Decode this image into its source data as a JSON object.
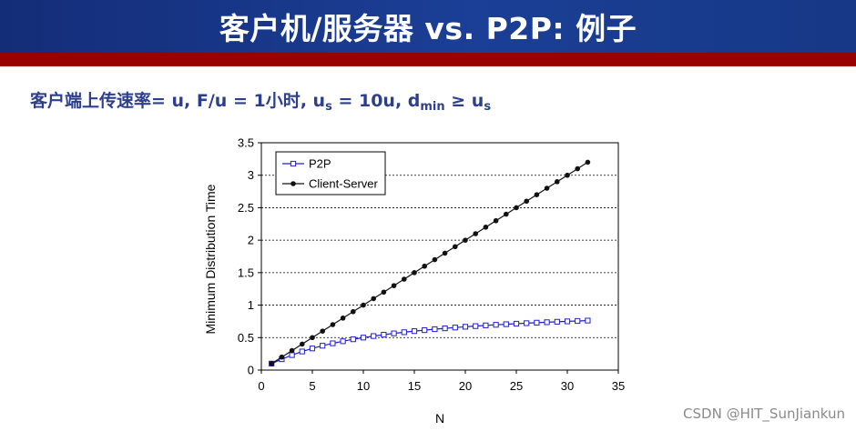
{
  "slide": {
    "title": "客户机/服务器 vs. P2P: 例子",
    "params": {
      "prefix": "客户端上传速率= u,  F/u = 1小时,  u",
      "us_sub": "s",
      "mid": " = 10u,  d",
      "dmin_sub": "min",
      "ge": " ≥ u",
      "us2_sub": "s"
    },
    "header_color": "#142d78",
    "accent_bar_color": "#9b0000",
    "text_color": "#2d3f8c"
  },
  "watermark": "CSDN @HIT_SunJiankun",
  "chart_data": {
    "type": "line",
    "xlabel": "N",
    "ylabel": "Minimum Distribution Time",
    "xlim": [
      0,
      35
    ],
    "ylim": [
      0,
      3.5
    ],
    "xticks": [
      0,
      5,
      10,
      15,
      20,
      25,
      30,
      35
    ],
    "yticks": [
      0,
      0.5,
      1,
      1.5,
      2,
      2.5,
      3,
      3.5
    ],
    "ytick_labels": [
      "0",
      "0.5",
      "1",
      "1.5",
      "2",
      "2.5",
      "3",
      "3.5"
    ],
    "grid": "horizontal-dashed",
    "legend_position": "top-left",
    "x": [
      1,
      2,
      3,
      4,
      5,
      6,
      7,
      8,
      9,
      10,
      11,
      12,
      13,
      14,
      15,
      16,
      17,
      18,
      19,
      20,
      21,
      22,
      23,
      24,
      25,
      26,
      27,
      28,
      29,
      30,
      31,
      32
    ],
    "series": [
      {
        "name": "P2P",
        "color": "#1f1fd1",
        "marker": "open-square",
        "values": [
          0.1,
          0.167,
          0.231,
          0.286,
          0.333,
          0.375,
          0.412,
          0.444,
          0.474,
          0.5,
          0.524,
          0.545,
          0.565,
          0.583,
          0.6,
          0.615,
          0.63,
          0.643,
          0.655,
          0.667,
          0.677,
          0.688,
          0.697,
          0.706,
          0.714,
          0.722,
          0.73,
          0.737,
          0.744,
          0.75,
          0.756,
          0.762
        ]
      },
      {
        "name": "Client-Server",
        "color": "#111111",
        "marker": "filled-circle",
        "values": [
          0.1,
          0.2,
          0.3,
          0.4,
          0.5,
          0.6,
          0.7,
          0.8,
          0.9,
          1.0,
          1.1,
          1.2,
          1.3,
          1.4,
          1.5,
          1.6,
          1.7,
          1.8,
          1.9,
          2.0,
          2.1,
          2.2,
          2.3,
          2.4,
          2.5,
          2.6,
          2.7,
          2.8,
          2.9,
          3.0,
          3.1,
          3.2
        ]
      }
    ]
  }
}
